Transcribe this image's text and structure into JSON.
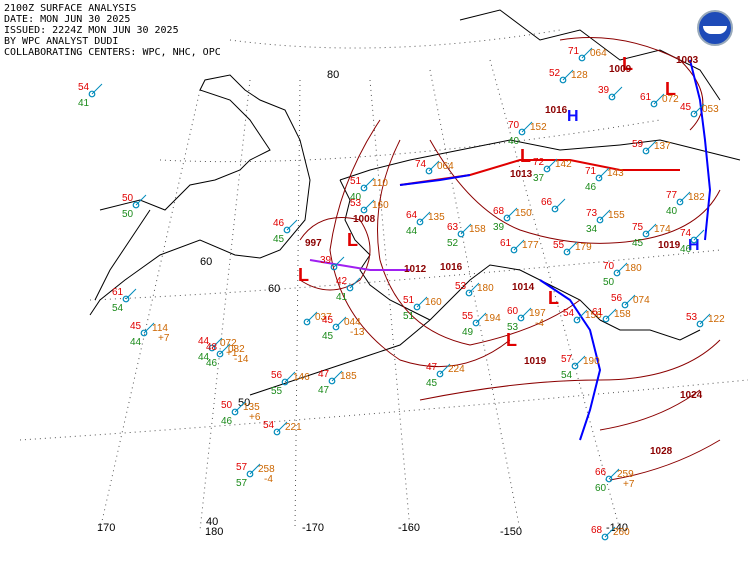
{
  "header": {
    "line1": "2100Z SURFACE ANALYSIS",
    "line2": "DATE: MON JUN 30 2025",
    "line3": "ISSUED: 2224Z MON JUN 30 2025",
    "line4": "BY WPC ANALYST DUDI",
    "line5": "COLLABORATING CENTERS: WPC, NHC, OPC"
  },
  "colors": {
    "coast": "#000000",
    "isobar": "#8b0000",
    "grid": "#555555",
    "warm_front": "#e00000",
    "cold_front": "#0000ff",
    "temp": "#e00000",
    "dewpoint": "#1a8a1a",
    "pressure": "#cc6600",
    "station": "#008bbb"
  },
  "logo": {
    "icon": "noaa-logo-icon"
  },
  "grid_labels": {
    "lat_80": "80",
    "lat_60_a": "60",
    "lat_60_b": "60",
    "lat_50": "50",
    "lat_40": "40",
    "lon_170": "170",
    "lon_180": "180",
    "lon_m170": "-170",
    "lon_m160": "-160",
    "lon_m150": "-150",
    "lon_m140": "-140"
  },
  "pressure_centers": [
    {
      "id": "low-997",
      "type": "L",
      "label": "997"
    },
    {
      "id": "low-1008",
      "type": "L",
      "label": "1008"
    },
    {
      "id": "low-1013",
      "type": "L",
      "label": "1013"
    },
    {
      "id": "high-1016",
      "type": "H",
      "label": "1016"
    },
    {
      "id": "low-1014",
      "type": "L",
      "label": "1014"
    },
    {
      "id": "low-1019-south",
      "type": "L",
      "label": "1019"
    },
    {
      "id": "high-1019-east",
      "type": "H",
      "label": "1019"
    },
    {
      "id": "low-1003",
      "type": "L",
      "label": "1003"
    },
    {
      "id": "low-1009",
      "type": "L",
      "label": "1009"
    },
    {
      "id": "lbl-1012",
      "type": "",
      "label": "1012"
    },
    {
      "id": "lbl-1016b",
      "type": "",
      "label": "1016"
    },
    {
      "id": "lbl-1028",
      "type": "",
      "label": "1028"
    },
    {
      "id": "lbl-1024",
      "type": "",
      "label": "1024"
    }
  ],
  "stations": [
    {
      "t": "54",
      "td": "41",
      "p": ""
    },
    {
      "t": "50",
      "td": "50",
      "p": ""
    },
    {
      "t": "61",
      "td": "54",
      "p": ""
    },
    {
      "t": "45",
      "td": "44",
      "p": "114",
      "tend": "+7"
    },
    {
      "t": "44",
      "td": "44",
      "p": "072",
      "tend": "+1"
    },
    {
      "t": "48",
      "td": "46",
      "p": "082",
      "tend": "-14"
    },
    {
      "t": "56",
      "td": "55",
      "p": "146"
    },
    {
      "t": "50",
      "td": "46",
      "p": "135",
      "tend": "+6"
    },
    {
      "t": "54",
      "td": "",
      "p": "221"
    },
    {
      "t": "57",
      "td": "57",
      "p": "258",
      "tend": "-4"
    },
    {
      "t": "47",
      "td": "47",
      "p": "185"
    },
    {
      "t": "",
      "td": "",
      "p": "037"
    },
    {
      "t": "45",
      "td": "45",
      "p": "044",
      "tend": "-13"
    },
    {
      "t": "42",
      "td": "41",
      "p": ""
    },
    {
      "t": "46",
      "td": "45",
      "p": ""
    },
    {
      "t": "39",
      "td": "",
      "p": ""
    },
    {
      "t": "51",
      "td": "40",
      "p": "110"
    },
    {
      "t": "53",
      "td": "",
      "p": "160"
    },
    {
      "t": "64",
      "td": "44",
      "p": "135"
    },
    {
      "t": "63",
      "td": "52",
      "p": "158"
    },
    {
      "t": "68",
      "td": "39",
      "p": "150"
    },
    {
      "t": "61",
      "td": "",
      "p": "177"
    },
    {
      "t": "66",
      "td": "",
      "p": ""
    },
    {
      "t": "55",
      "td": "",
      "p": "179"
    },
    {
      "t": "73",
      "td": "34",
      "p": "155"
    },
    {
      "t": "71",
      "td": "46",
      "p": "143"
    },
    {
      "t": "72",
      "td": "37",
      "p": "142"
    },
    {
      "t": "74",
      "td": "",
      "p": "064"
    },
    {
      "t": "75",
      "td": "45",
      "p": "174"
    },
    {
      "t": "70",
      "td": "50",
      "p": "180"
    },
    {
      "t": "55",
      "td": "49",
      "p": "194"
    },
    {
      "t": "47",
      "td": "45",
      "p": "224"
    },
    {
      "t": "53",
      "td": "",
      "p": "180"
    },
    {
      "t": "60",
      "td": "53",
      "p": "197",
      "tend": "-4"
    },
    {
      "t": "57",
      "td": "54",
      "p": "190"
    },
    {
      "t": "54",
      "td": "",
      "p": "156"
    },
    {
      "t": "61",
      "td": "",
      "p": "158"
    },
    {
      "t": "53",
      "td": "",
      "p": "122"
    },
    {
      "t": "77",
      "td": "40",
      "p": "182"
    },
    {
      "t": "74",
      "td": "46",
      "p": ""
    },
    {
      "t": "59",
      "td": "",
      "p": "137"
    },
    {
      "t": "61",
      "td": "",
      "p": "072"
    },
    {
      "t": "52",
      "td": "",
      "p": "128"
    },
    {
      "t": "70",
      "td": "40",
      "p": "152"
    },
    {
      "t": "71",
      "td": "",
      "p": "064"
    },
    {
      "t": "45",
      "td": "",
      "p": "053"
    },
    {
      "t": "66",
      "td": "60",
      "p": "259",
      "tend": "+7"
    },
    {
      "t": "68",
      "td": "",
      "p": "260"
    },
    {
      "t": "51",
      "td": "51",
      "p": "160"
    },
    {
      "t": "56",
      "td": "",
      "p": "074"
    },
    {
      "t": "39",
      "td": "",
      "p": ""
    }
  ]
}
